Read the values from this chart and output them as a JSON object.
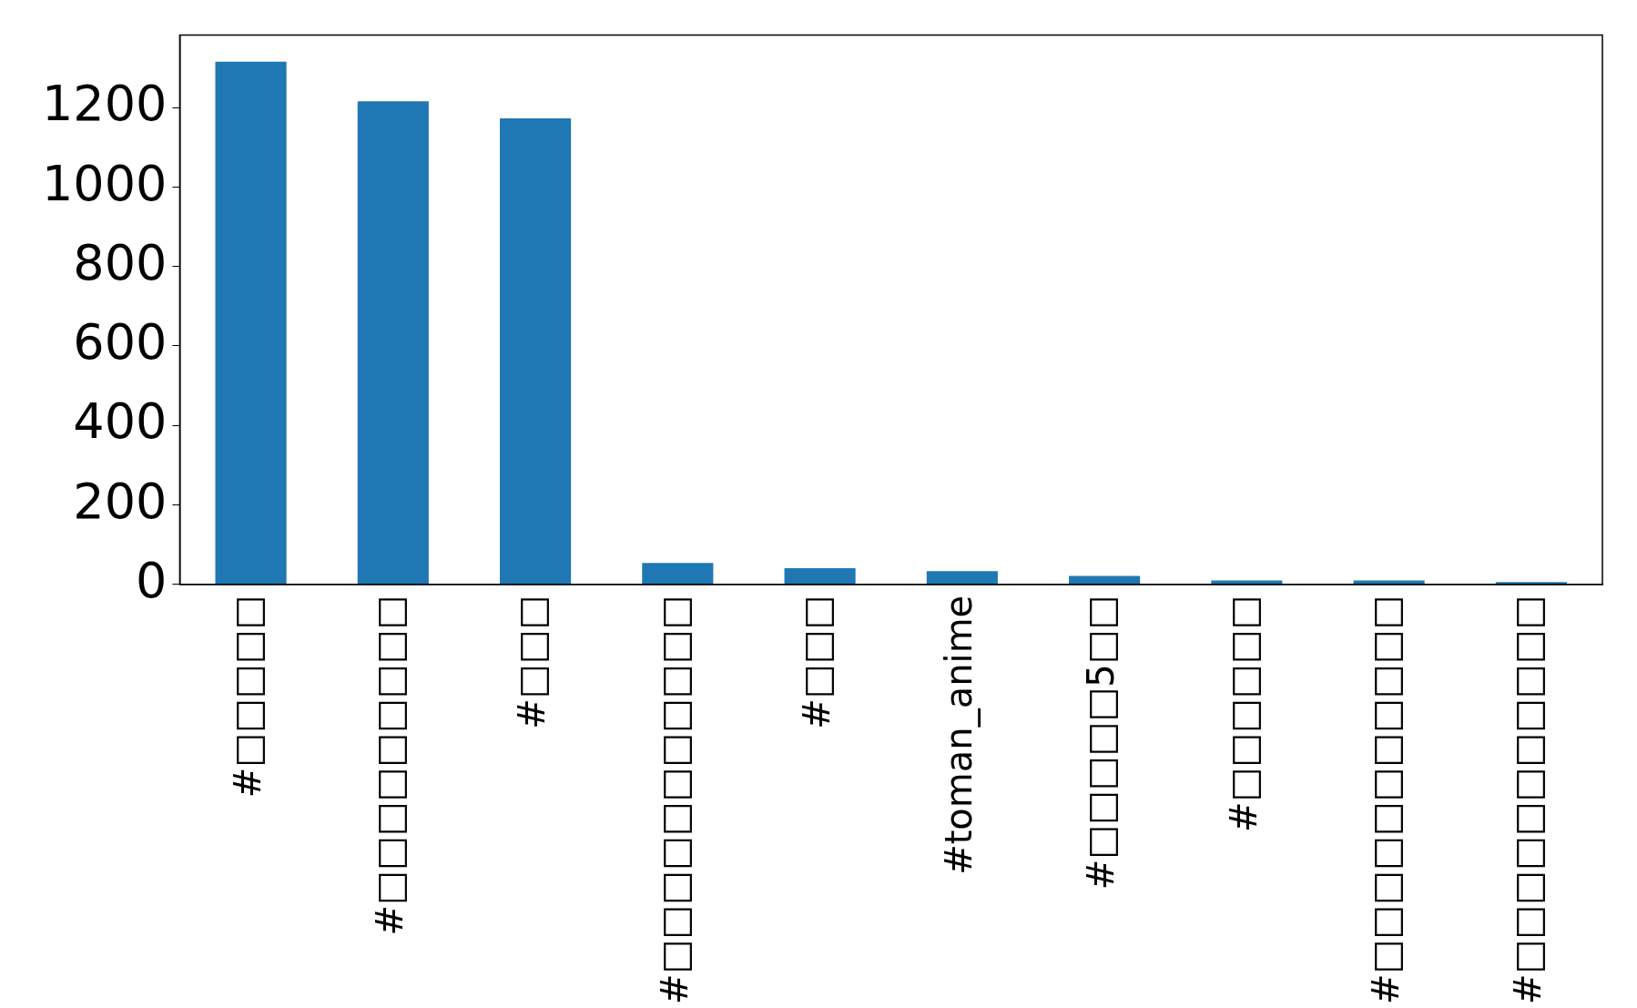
{
  "chart_data": {
    "type": "bar",
    "categories": [
      "#□□□□□",
      "#□□□□□□□□□",
      "#□□□",
      "#□□□□□□□□□□□",
      "#□□□",
      "#toman_anime",
      "#□□□□□5□□",
      "#□□□□□□",
      "#□□□□□□□□□□□",
      "#□□□□□□□□□□□"
    ],
    "values": [
      1316,
      1216,
      1173,
      54,
      41,
      33,
      21,
      10,
      10,
      6
    ],
    "color": "#1f77b4",
    "ylim": [
      0,
      1383
    ],
    "yticks": [
      0,
      200,
      400,
      600,
      800,
      1000,
      1200
    ],
    "grid": false,
    "legend": false
  }
}
